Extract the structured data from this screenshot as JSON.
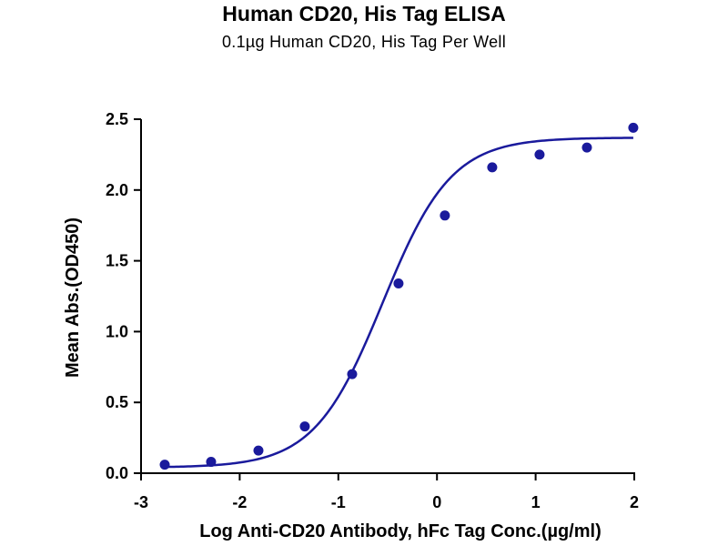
{
  "chart_data": {
    "type": "scatter",
    "title": "Human CD20, His Tag ELISA",
    "subtitle": "0.1µg Human CD20, His Tag Per Well",
    "xlabel": "Log Anti-CD20 Antibody, hFc Tag Conc.(µg/ml)",
    "ylabel": "Mean Abs.(OD450)",
    "xlim": [
      -3,
      2
    ],
    "ylim": [
      0,
      2.5
    ],
    "xticks": [
      -3,
      -2,
      -1,
      0,
      1,
      2
    ],
    "yticks": [
      0.0,
      0.5,
      1.0,
      1.5,
      2.0,
      2.5
    ],
    "ytick_labels": [
      "0.0",
      "0.5",
      "1.0",
      "1.5",
      "2.0",
      "2.5"
    ],
    "grid": false,
    "series": [
      {
        "color": "#1a1a9c",
        "x": [
          -2.76,
          -2.29,
          -1.81,
          -1.34,
          -0.86,
          -0.39,
          0.08,
          0.56,
          1.04,
          1.52,
          1.99
        ],
        "y": [
          0.06,
          0.08,
          0.16,
          0.33,
          0.7,
          1.34,
          1.82,
          2.16,
          2.25,
          2.3,
          2.44
        ]
      }
    ],
    "fit_curve": {
      "model": "4PL",
      "bottom": 0.04,
      "top": 2.37,
      "log_ec50": -0.55,
      "hill_slope": 1.25,
      "x_range": [
        -2.76,
        1.99
      ],
      "color": "#1a1a9c"
    }
  }
}
